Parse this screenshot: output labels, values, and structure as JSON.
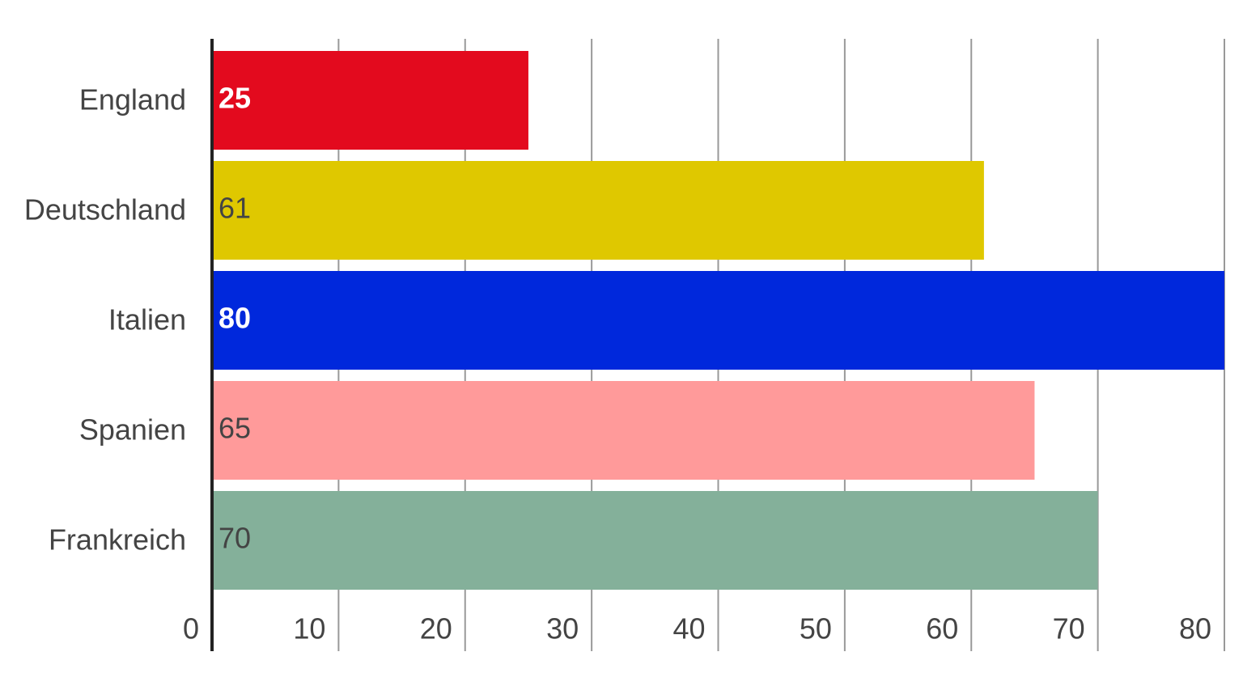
{
  "chart_data": {
    "type": "barh",
    "categories": [
      "England",
      "Deutschland",
      "Italien",
      "Spanien",
      "Frankreich"
    ],
    "values": [
      25,
      61,
      80,
      65,
      70
    ],
    "colors": [
      "#e30a1e",
      "#dfc800",
      "#0028dc",
      "#ff9a9a",
      "#84b09a"
    ],
    "xlim": [
      0,
      80
    ],
    "xticks": [
      0,
      10,
      20,
      30,
      40,
      50,
      60,
      70,
      80
    ],
    "grid": true
  }
}
